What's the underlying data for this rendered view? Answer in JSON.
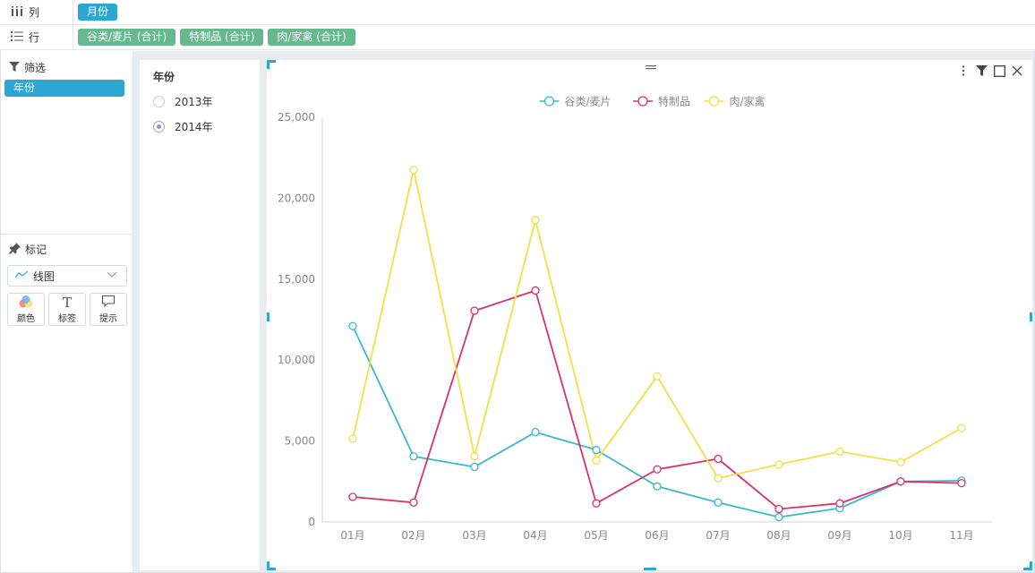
{
  "shelves": {
    "columns": {
      "label": "列",
      "pills": [
        "月份"
      ]
    },
    "rows": {
      "label": "行",
      "pills": [
        "谷类/麦片 (合计)",
        "特制品 (合计)",
        "肉/家禽 (合计)"
      ]
    }
  },
  "left_panel": {
    "filter_title": "筛选",
    "filter_pill": "年份",
    "marks_title": "标记",
    "mark_type": "线图",
    "mark_buttons": [
      "颜色",
      "标签",
      "提示"
    ]
  },
  "year_filter": {
    "title": "年份",
    "options": [
      {
        "label": "2013年",
        "checked": false
      },
      {
        "label": "2014年",
        "checked": true
      }
    ]
  },
  "chart_data": {
    "type": "line",
    "categories": [
      "01月",
      "02月",
      "03月",
      "04月",
      "05月",
      "06月",
      "07月",
      "08月",
      "09月",
      "10月",
      "11月"
    ],
    "ylim": [
      0,
      25000
    ],
    "yticks": [
      "0",
      "5,000",
      "10,000",
      "15,000",
      "20,000",
      "25,000"
    ],
    "ytick_values": [
      0,
      5000,
      10000,
      15000,
      20000,
      25000
    ],
    "legend_position": "top-center",
    "grid": false,
    "series": [
      {
        "name": "谷类/麦片",
        "color": "#3cb7cc",
        "values": [
          12100,
          4050,
          3400,
          5550,
          4450,
          2200,
          1200,
          300,
          850,
          2500,
          2550
        ]
      },
      {
        "name": "特制品",
        "color": "#d6336c",
        "values": [
          1550,
          1200,
          13050,
          14300,
          1150,
          3250,
          3900,
          800,
          1150,
          2500,
          2400
        ]
      },
      {
        "name": "肉/家禽",
        "color": "#f2df47",
        "values": [
          5150,
          21750,
          4050,
          18650,
          3800,
          9000,
          2700,
          3550,
          4350,
          3700,
          5800
        ]
      }
    ]
  },
  "colors": {
    "accent": "#2ea6d3",
    "pill_green": "#66b98f"
  },
  "icons": {
    "columns": "columns-icon",
    "rows": "rows-icon",
    "filter": "filter-icon",
    "marks": "pin-icon",
    "toolbar": [
      "more-icon",
      "filter-icon",
      "maximize-icon",
      "close-icon"
    ]
  }
}
